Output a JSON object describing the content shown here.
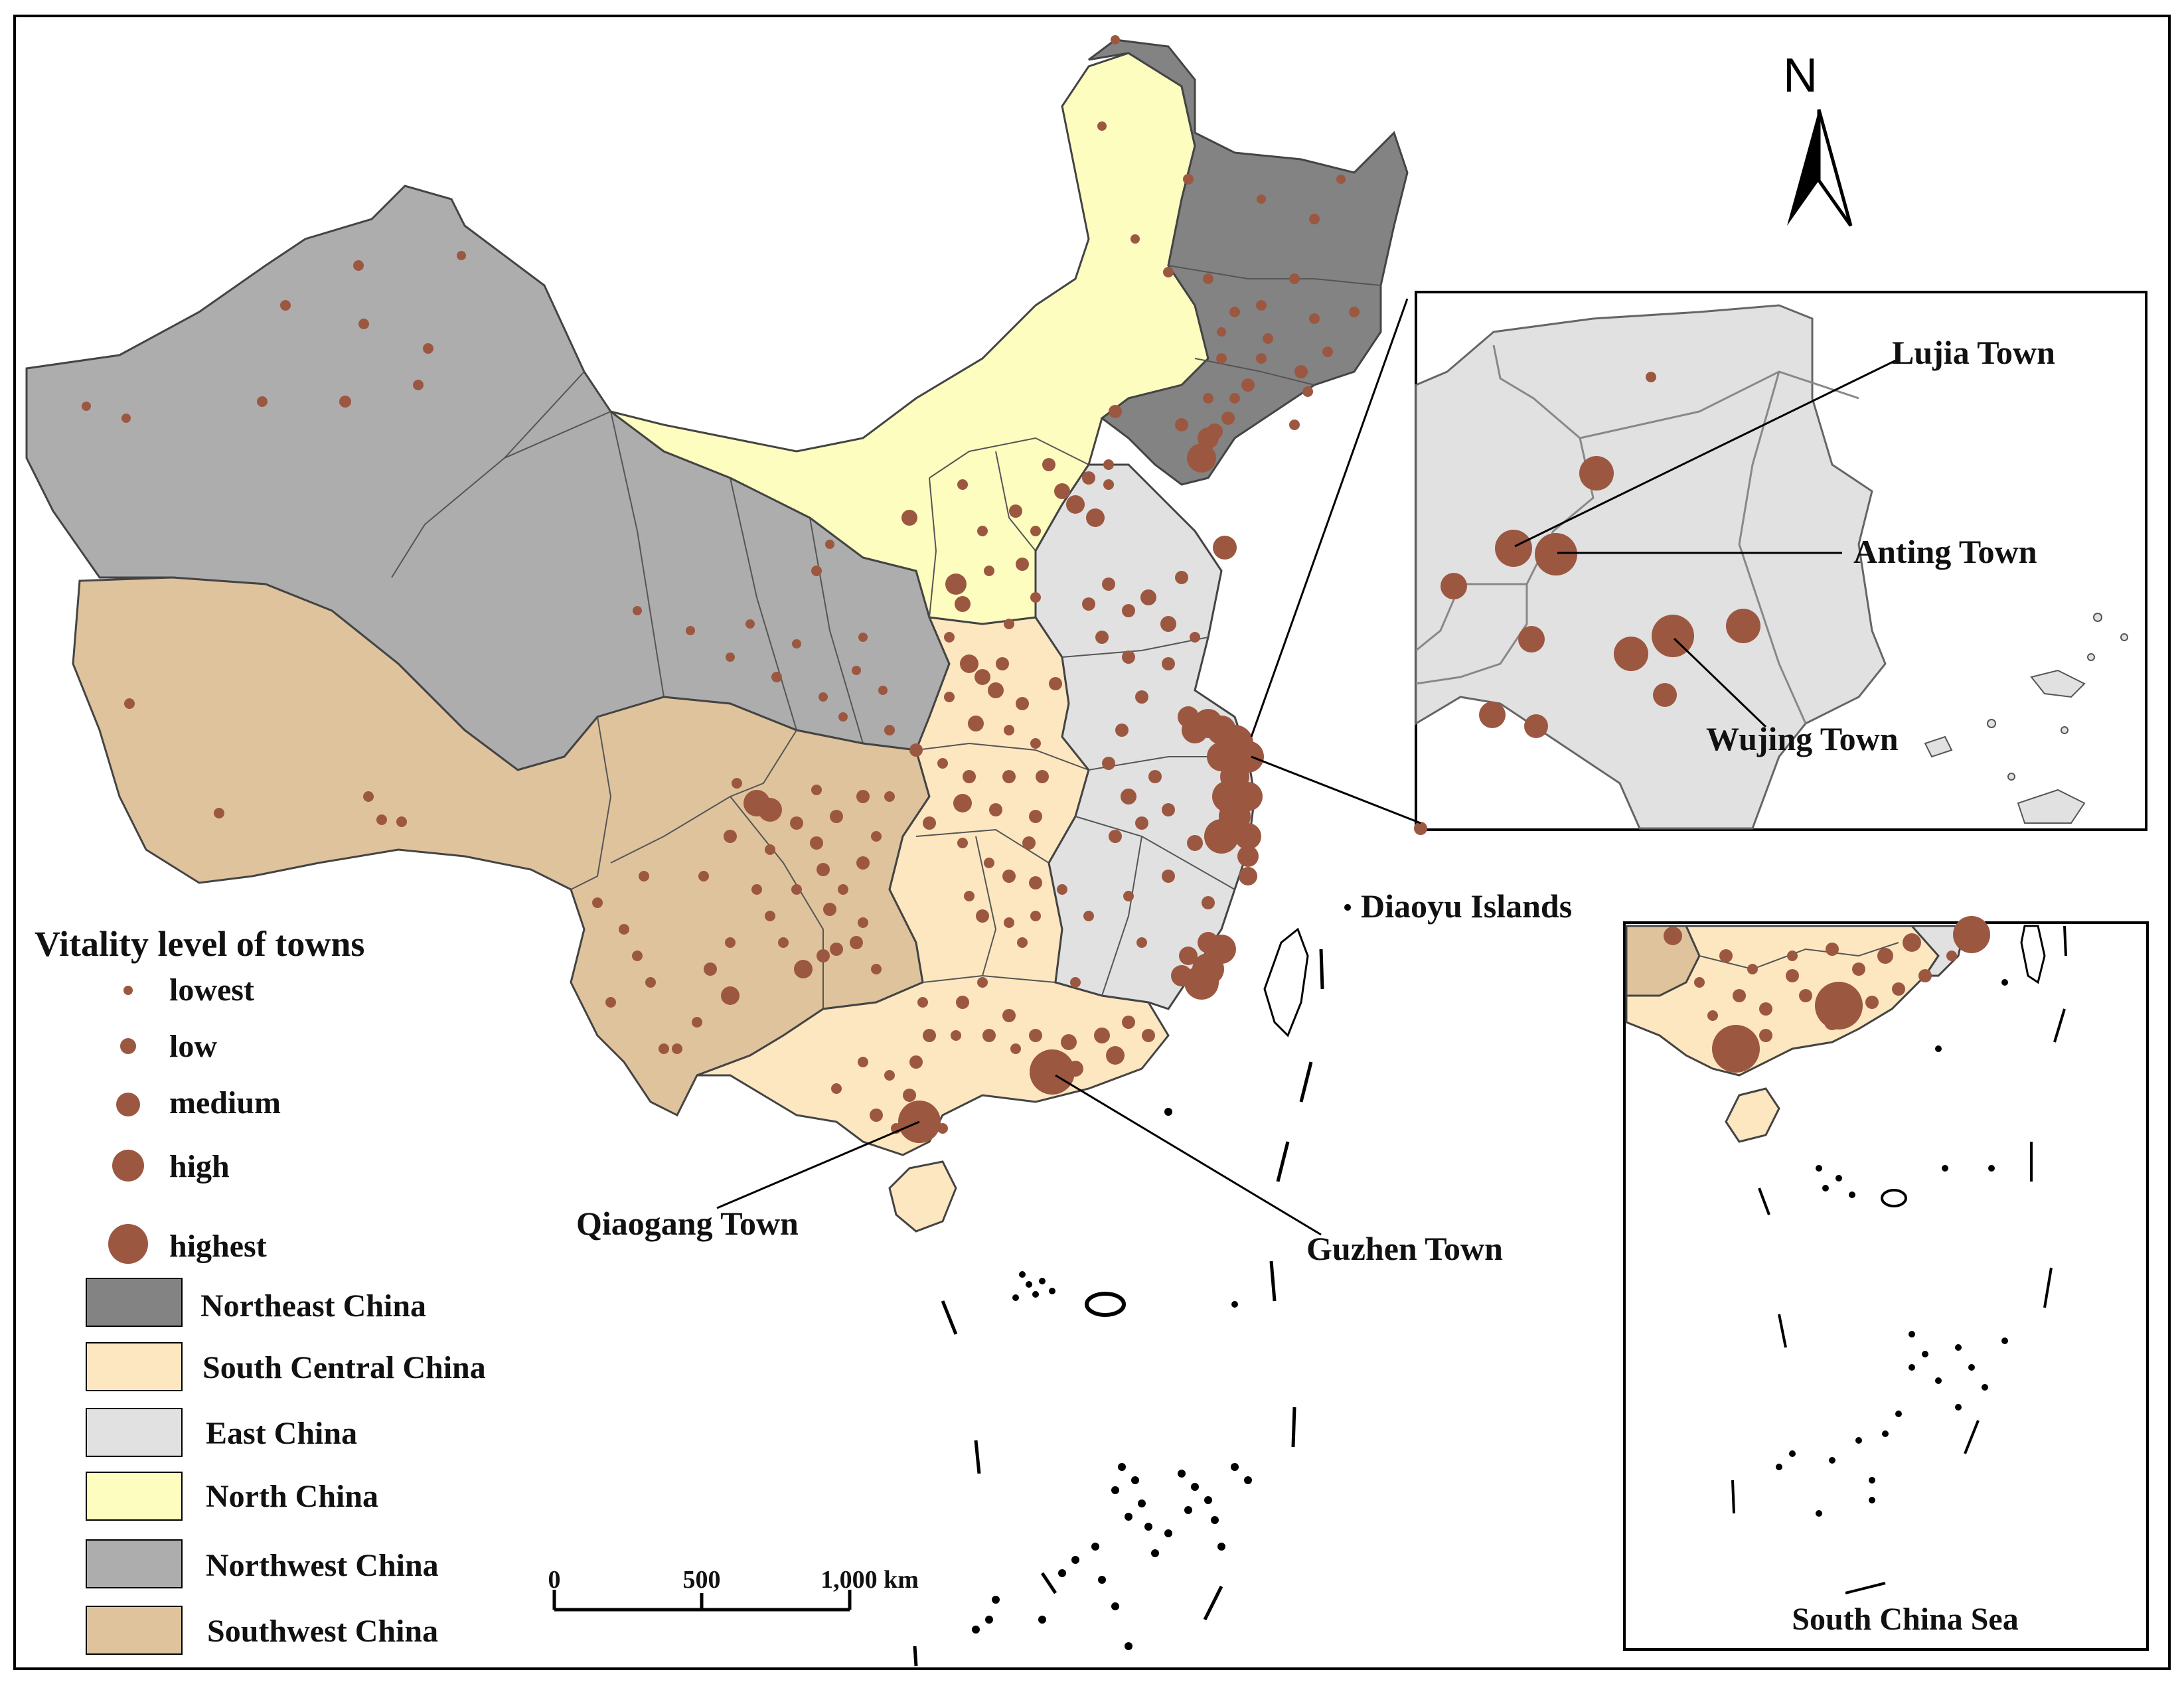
{
  "north_label": "N",
  "legend": {
    "title": "Vitality level of towns",
    "levels": [
      "lowest",
      "low",
      "medium",
      "high",
      "highest"
    ],
    "regions": [
      {
        "name": "Northeast China",
        "color": "#838383"
      },
      {
        "name": "South Central China",
        "color": "#fde7c0"
      },
      {
        "name": "East China",
        "color": "#e1e1e1"
      },
      {
        "name": "North China",
        "color": "#fdfdc0"
      },
      {
        "name": "Northwest China",
        "color": "#adadad"
      },
      {
        "name": "Southwest China",
        "color": "#dfc39d"
      }
    ]
  },
  "scale_bar": {
    "ticks": [
      "0",
      "500",
      "1,000 km"
    ]
  },
  "callouts": {
    "lujia": "Lujia Town",
    "anting": "Anting Town",
    "wujing": "Wujing Town",
    "qiaogang": "Qiaogang Town",
    "guzhen": "Guzhen Town",
    "diaoyu": "Diaoyu Islands"
  },
  "inset_south_china_sea": "South China Sea",
  "colors": {
    "town_marker": "#9c5741"
  }
}
